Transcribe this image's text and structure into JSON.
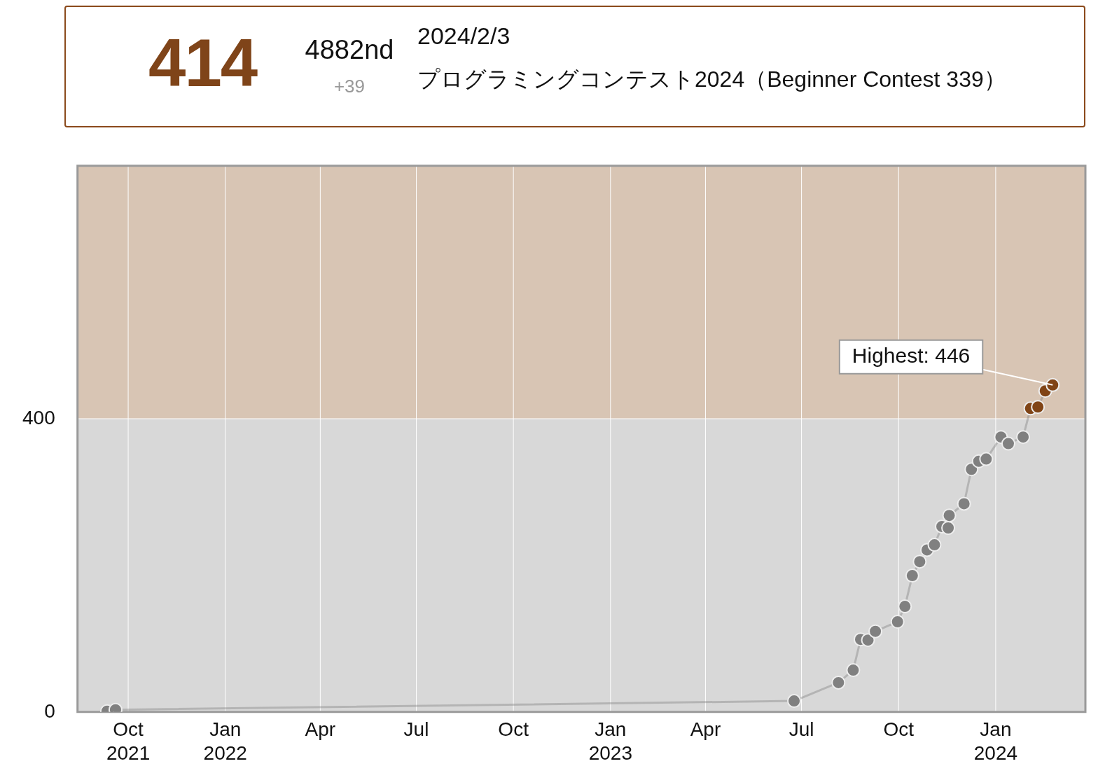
{
  "chart_data": [
    {
      "type": "other",
      "annotations": [
        "414",
        "4882nd",
        "+39",
        "2024/2/3",
        "プログラミングコンテスト2024（Beginner Contest 339）"
      ]
    },
    {
      "type": "line",
      "marker": "circle",
      "grid": true,
      "legend": false,
      "xlim": [
        "2021-08-14",
        "2024-03-26"
      ],
      "xticks": [
        {
          "value": "2021-10-01",
          "label": "Oct 2021"
        },
        {
          "value": "2022-01-01",
          "label": "Jan 2022"
        },
        {
          "value": "2022-04-01",
          "label": "Apr"
        },
        {
          "value": "2022-07-01",
          "label": "Jul"
        },
        {
          "value": "2022-10-01",
          "label": "Oct"
        },
        {
          "value": "2023-01-01",
          "label": "Jan 2023"
        },
        {
          "value": "2023-04-01",
          "label": "Apr"
        },
        {
          "value": "2023-07-01",
          "label": "Jul"
        },
        {
          "value": "2023-10-01",
          "label": "Oct"
        },
        {
          "value": "2024-01-01",
          "label": "Jan 2024"
        }
      ],
      "ylim": [
        0,
        745
      ],
      "yticks": [
        0,
        400
      ],
      "bands": [
        {
          "axis": "y",
          "from": 0,
          "to": 400,
          "color": "#d8d8d8"
        },
        {
          "axis": "y",
          "from": 400,
          "to": 745,
          "color": "#d8c5b4"
        }
      ],
      "annotations": [
        {
          "text": "Highest: 446",
          "x": "2024-02-24",
          "y": 446
        }
      ],
      "series": [
        {
          "color": "#808080",
          "x": [
            "2021-09-11",
            "2021-09-19",
            "2023-06-24",
            "2023-08-05",
            "2023-08-19",
            "2023-08-26",
            "2023-09-02",
            "2023-09-09",
            "2023-09-30",
            "2023-10-07",
            "2023-10-14",
            "2023-10-21",
            "2023-10-28",
            "2023-11-04",
            "2023-11-11",
            "2023-11-17",
            "2023-11-18",
            "2023-12-02",
            "2023-12-09",
            "2023-12-16",
            "2023-12-23",
            "2024-01-06",
            "2024-01-13",
            "2024-01-27",
            "2024-02-03",
            "2024-02-10",
            "2024-02-17",
            "2024-02-24"
          ],
          "values": [
            1,
            3,
            15,
            40,
            57,
            99,
            98,
            110,
            123,
            144,
            186,
            205,
            221,
            228,
            253,
            251,
            268,
            284,
            331,
            342,
            345,
            375,
            366,
            375,
            414,
            416,
            438,
            446
          ],
          "colors": [
            "#808080",
            "#808080",
            "#808080",
            "#808080",
            "#808080",
            "#808080",
            "#808080",
            "#808080",
            "#808080",
            "#808080",
            "#808080",
            "#808080",
            "#808080",
            "#808080",
            "#808080",
            "#808080",
            "#808080",
            "#808080",
            "#808080",
            "#808080",
            "#808080",
            "#808080",
            "#808080",
            "#808080",
            "#804416",
            "#804416",
            "#804416",
            "#804416"
          ]
        }
      ]
    }
  ]
}
